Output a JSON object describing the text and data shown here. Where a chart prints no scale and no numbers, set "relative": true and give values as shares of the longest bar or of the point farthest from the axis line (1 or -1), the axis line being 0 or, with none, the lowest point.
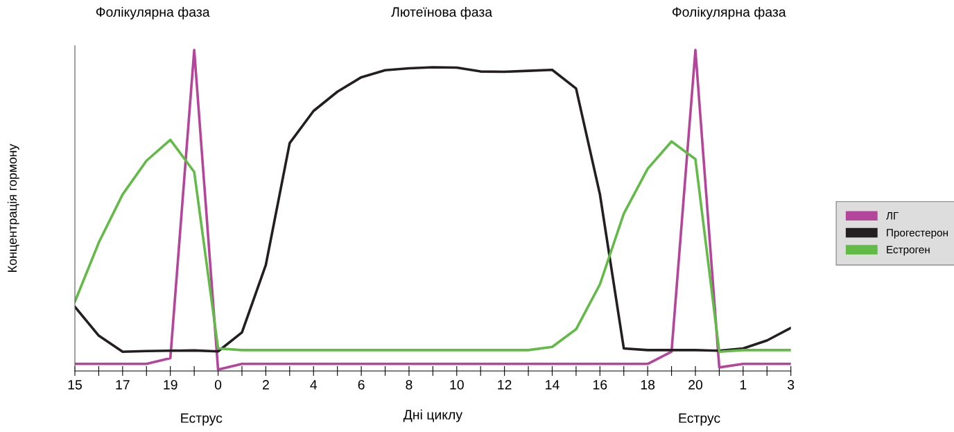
{
  "chart_data": {
    "type": "line",
    "relative": true,
    "xlabel": "Дні циклу",
    "ylabel": "Концентрація гормону",
    "annotations": [
      "Фолікулярна фаза",
      "Лютеїнова фаза",
      "Фолікулярна фаза",
      "Еструс",
      "Еструс"
    ],
    "categories": [
      "15",
      null,
      "17",
      null,
      "19",
      null,
      "0",
      null,
      "2",
      null,
      "4",
      null,
      "6",
      null,
      "8",
      null,
      "10",
      null,
      "12",
      null,
      "14",
      null,
      "16",
      null,
      "18",
      null,
      "20",
      null,
      "1",
      null,
      "3"
    ],
    "grid": false,
    "legend": "right",
    "marker": "none",
    "line_style": "solid",
    "series": [
      {
        "name": "ЛГ",
        "color": "#b5449b",
        "values": [
          0.022,
          0.022,
          0.022,
          0.022,
          0.04,
          1.0,
          0.004,
          0.022,
          0.022,
          0.022,
          0.022,
          0.022,
          0.022,
          0.022,
          0.022,
          0.022,
          0.022,
          0.022,
          0.022,
          0.022,
          0.022,
          0.022,
          0.022,
          0.022,
          0.022,
          0.06,
          1.0,
          0.011,
          0.022,
          0.022,
          0.022
        ]
      },
      {
        "name": "Прогестерон",
        "color": "#231f20",
        "values": [
          0.2,
          0.11,
          0.06,
          0.062,
          0.063,
          0.064,
          0.061,
          0.12,
          0.33,
          0.71,
          0.81,
          0.87,
          0.915,
          0.937,
          0.943,
          0.946,
          0.945,
          0.933,
          0.932,
          0.935,
          0.938,
          0.88,
          0.55,
          0.07,
          0.065,
          0.065,
          0.065,
          0.063,
          0.07,
          0.095,
          0.134
        ]
      },
      {
        "name": "Естроген",
        "color": "#62bb47",
        "values": [
          0.216,
          0.4,
          0.55,
          0.655,
          0.72,
          0.62,
          0.07,
          0.065,
          0.065,
          0.065,
          0.065,
          0.065,
          0.065,
          0.065,
          0.065,
          0.065,
          0.065,
          0.065,
          0.065,
          0.065,
          0.075,
          0.13,
          0.27,
          0.49,
          0.63,
          0.715,
          0.66,
          0.06,
          0.065,
          0.065,
          0.065
        ]
      }
    ]
  }
}
